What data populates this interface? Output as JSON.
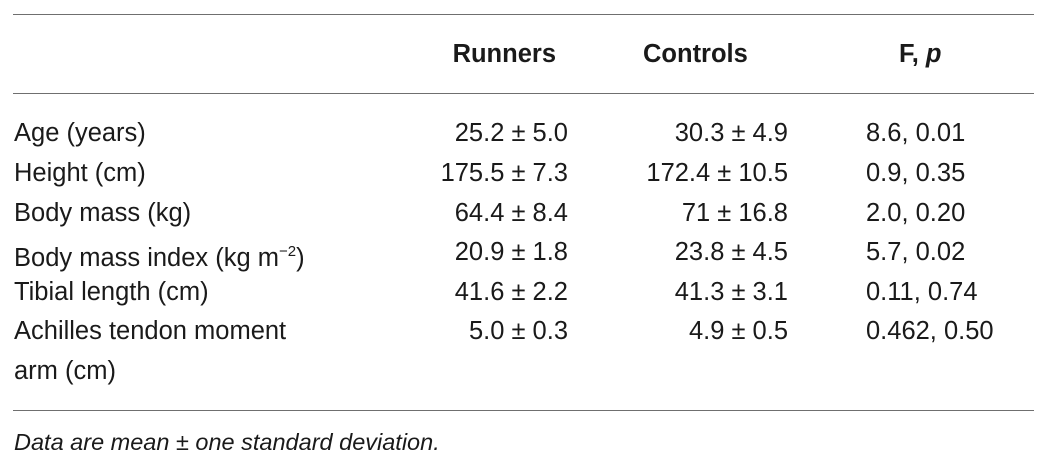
{
  "table": {
    "headers": {
      "col1": "",
      "runners": "Runners",
      "controls": "Controls",
      "stat_prefix": "F, ",
      "stat_italic": "p"
    },
    "rows": [
      {
        "label": "Age (years)",
        "label_cont": "",
        "runners": "25.2 ± 5.0",
        "controls": "30.3 ± 4.9",
        "stat": "8.6, 0.01"
      },
      {
        "label": "Height (cm)",
        "label_cont": "",
        "runners": "175.5 ± 7.3",
        "controls": "172.4 ± 10.5",
        "stat": "0.9, 0.35"
      },
      {
        "label": "Body mass (kg)",
        "label_cont": "",
        "runners": "64.4 ± 8.4",
        "controls": "71 ± 16.8",
        "stat": "2.0, 0.20"
      },
      {
        "label": "Body mass index (kg m",
        "label_sup": "−2",
        "label_tail": ")",
        "runners": "20.9 ± 1.8",
        "controls": "23.8 ± 4.5",
        "stat": "5.7, 0.02"
      },
      {
        "label": "Tibial length (cm)",
        "label_cont": "",
        "runners": "41.6 ± 2.2",
        "controls": "41.3 ± 3.1",
        "stat": "0.11, 0.74"
      },
      {
        "label": "Achilles tendon moment",
        "label_cont": "arm (cm)",
        "runners": "5.0 ± 0.3",
        "controls": "4.9 ± 0.5",
        "stat": "0.462, 0.50"
      }
    ],
    "footnote": "Data are mean ± one standard deviation."
  }
}
